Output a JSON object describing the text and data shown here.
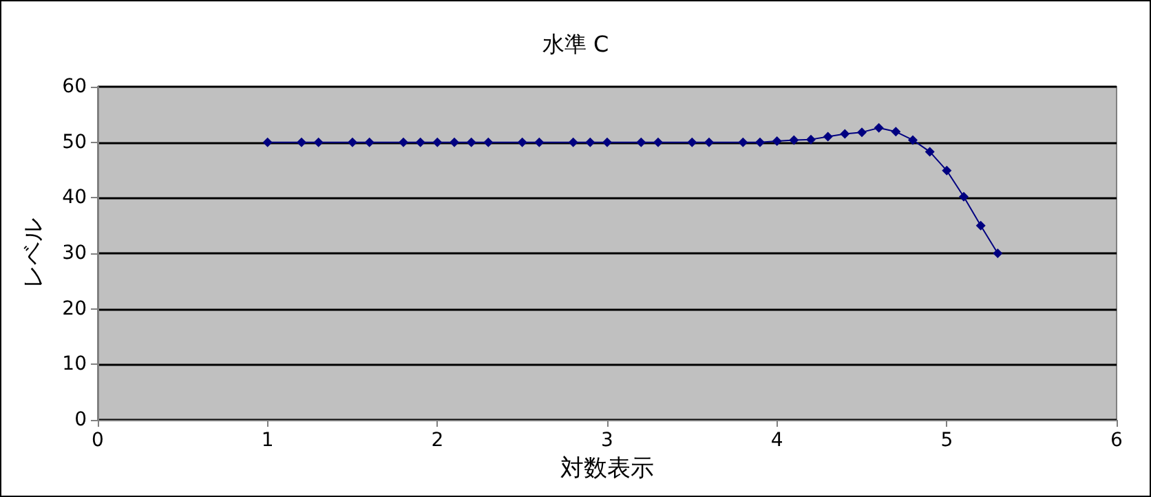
{
  "chart_data": {
    "type": "line",
    "title": "水準 C",
    "xlabel": "対数表示",
    "ylabel": "レベル",
    "x": [
      1,
      1.2,
      1.3,
      1.5,
      1.6,
      1.8,
      1.9,
      2,
      2.1,
      2.2,
      2.3,
      2.5,
      2.6,
      2.8,
      2.9,
      3,
      3.2,
      3.3,
      3.5,
      3.6,
      3.8,
      3.9,
      4,
      4.1,
      4.2,
      4.3,
      4.4,
      4.5,
      4.6,
      4.7,
      4.8,
      4.9,
      5,
      5.1,
      5.2,
      5.3
    ],
    "series": [
      {
        "color": "#000080",
        "values": [
          50,
          50,
          50,
          50,
          50,
          50,
          50,
          50,
          50,
          50,
          50,
          50,
          50,
          50,
          50,
          50,
          50,
          50,
          50,
          50,
          50,
          50,
          50.2,
          50.4,
          50.5,
          51,
          51.5,
          51.8,
          52.6,
          51.9,
          50.4,
          48.3,
          44.9,
          40.2,
          35,
          30
        ]
      }
    ],
    "xlim": [
      0,
      6
    ],
    "xticks": [
      0,
      1,
      2,
      3,
      4,
      5,
      6
    ],
    "ylim": [
      0,
      60
    ],
    "yticks": [
      0,
      10,
      20,
      30,
      40,
      50,
      60
    ],
    "grid": "y",
    "marker": "diamond",
    "line_style": "solid"
  }
}
